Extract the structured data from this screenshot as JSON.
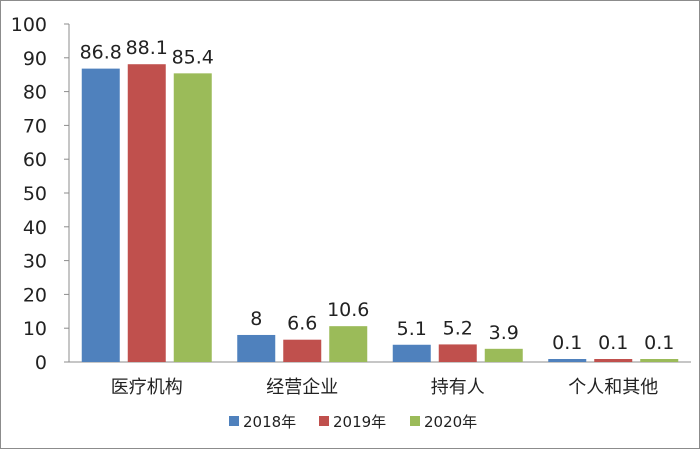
{
  "chart_data": {
    "type": "bar",
    "categories": [
      "医疗机构",
      "经营企业",
      "持有人",
      "个人和其他"
    ],
    "series": [
      {
        "name": "2018年",
        "color": "#4f81bd",
        "values": [
          86.8,
          8,
          5.1,
          0.1
        ],
        "labels": [
          "86.8",
          "8",
          "5.1",
          "0.1"
        ]
      },
      {
        "name": "2019年",
        "color": "#c0504d",
        "values": [
          88.1,
          6.6,
          5.2,
          0.1
        ],
        "labels": [
          "88.1",
          "6.6",
          "5.2",
          "0.1"
        ]
      },
      {
        "name": "2020年",
        "color": "#9bbb59",
        "values": [
          85.4,
          10.6,
          3.9,
          0.1
        ],
        "labels": [
          "85.4",
          "10.6",
          "3.9",
          "0.1"
        ]
      }
    ],
    "yticks": [
      "0",
      "10",
      "20",
      "30",
      "40",
      "50",
      "60",
      "70",
      "80",
      "90",
      "100"
    ],
    "ylim": [
      0,
      100
    ],
    "grid": false,
    "legend": "bottom"
  }
}
